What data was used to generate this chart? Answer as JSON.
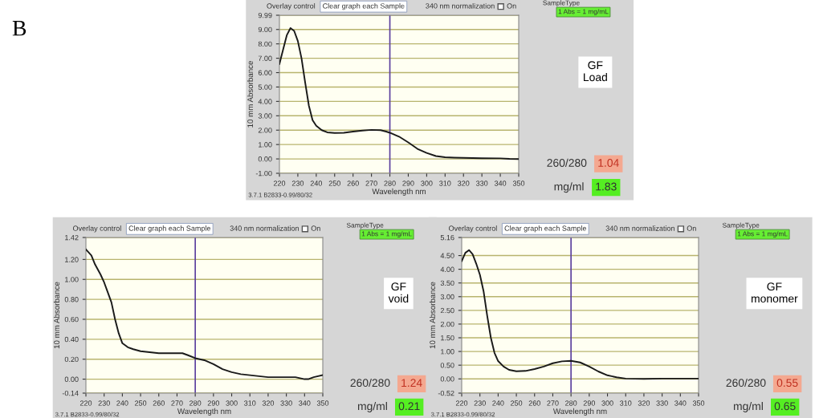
{
  "chart_data": [
    {
      "type": "line",
      "xlabel": "Wavelength nm",
      "ylabel": "10 mm Absorbance",
      "xlim": [
        220,
        350
      ],
      "ylim": [
        -1.0,
        9.99
      ],
      "xticks": [
        220,
        230,
        240,
        250,
        260,
        270,
        280,
        290,
        300,
        310,
        320,
        330,
        340,
        350
      ],
      "yticks": [
        {
          "value": -1,
          "label": "-1.00"
        },
        {
          "value": 0,
          "label": "0.00"
        },
        {
          "value": 1,
          "label": "1.00"
        },
        {
          "value": 2,
          "label": "2.00"
        },
        {
          "value": 3,
          "label": "3.00"
        },
        {
          "value": 4,
          "label": "4.00"
        },
        {
          "value": 5,
          "label": "5.00"
        },
        {
          "value": 6,
          "label": "6.00"
        },
        {
          "value": 7,
          "label": "7.00"
        },
        {
          "value": 8,
          "label": "8.00"
        },
        {
          "value": 9,
          "label": "9.00"
        },
        {
          "value": 9.99,
          "label": "9.99"
        }
      ],
      "grid": "y",
      "ref_lines": [
        {
          "axis": "x",
          "value": 280,
          "color": "#5b3f9e"
        }
      ],
      "series": [
        {
          "color": "#1a1a1a",
          "x": [
            220,
            222,
            224,
            226,
            228,
            230,
            232,
            234,
            236,
            238,
            240,
            243,
            246,
            250,
            255,
            260,
            265,
            270,
            275,
            278,
            280,
            285,
            290,
            295,
            300,
            305,
            310,
            315,
            320,
            330,
            340,
            345,
            350
          ],
          "values": [
            6.6,
            7.6,
            8.6,
            9.1,
            8.9,
            8.2,
            7.0,
            5.3,
            3.7,
            2.7,
            2.3,
            2.0,
            1.85,
            1.8,
            1.82,
            1.9,
            1.97,
            2.02,
            2.0,
            1.9,
            1.82,
            1.55,
            1.15,
            0.7,
            0.42,
            0.2,
            0.12,
            0.09,
            0.07,
            0.05,
            0.04,
            0.0,
            -0.01
          ]
        }
      ],
      "annotations": [
        "Overlay control",
        "Clear graph each Sample",
        "340 nm normalization",
        "On",
        "SampleType",
        "1 Abs = 1 mg/mL",
        "GF\nLoad",
        "260/280",
        "1.04",
        "mg/ml",
        "1.83",
        "3.7.1 B2833-0.99/80/32",
        "B"
      ]
    },
    {
      "type": "line",
      "xlabel": "Wavelength nm",
      "ylabel": "10 mm Absorbance",
      "xlim": [
        220,
        350
      ],
      "ylim": [
        -0.14,
        1.42
      ],
      "xticks": [
        220,
        230,
        240,
        250,
        260,
        270,
        280,
        290,
        300,
        310,
        320,
        330,
        340,
        350
      ],
      "yticks": [
        {
          "value": -0.14,
          "label": "-0.14"
        },
        {
          "value": 0,
          "label": "0.00"
        },
        {
          "value": 0.2,
          "label": "0.20"
        },
        {
          "value": 0.4,
          "label": "0.40"
        },
        {
          "value": 0.6,
          "label": "0.60"
        },
        {
          "value": 0.8,
          "label": "0.80"
        },
        {
          "value": 1.0,
          "label": "1.00"
        },
        {
          "value": 1.2,
          "label": "1.20"
        },
        {
          "value": 1.42,
          "label": "1.42"
        }
      ],
      "grid": "y",
      "ref_lines": [
        {
          "axis": "x",
          "value": 280,
          "color": "#5b3f9e"
        }
      ],
      "series": [
        {
          "color": "#1a1a1a",
          "x": [
            220,
            223,
            225,
            228,
            230,
            232,
            234,
            236,
            238,
            240,
            243,
            246,
            250,
            255,
            260,
            265,
            270,
            273,
            276,
            280,
            285,
            290,
            295,
            300,
            305,
            310,
            315,
            320,
            330,
            335,
            340,
            342,
            345,
            350
          ],
          "values": [
            1.3,
            1.24,
            1.15,
            1.05,
            0.97,
            0.87,
            0.77,
            0.6,
            0.46,
            0.36,
            0.32,
            0.3,
            0.28,
            0.27,
            0.26,
            0.26,
            0.26,
            0.26,
            0.24,
            0.21,
            0.19,
            0.15,
            0.1,
            0.07,
            0.05,
            0.04,
            0.03,
            0.02,
            0.02,
            0.02,
            0.0,
            0.0,
            0.02,
            0.04
          ]
        }
      ],
      "annotations": [
        "Overlay control",
        "Clear graph each Sample",
        "340 nm normalization",
        "On",
        "SampleType",
        "1 Abs = 1 mg/mL",
        "GF\nvoid",
        "260/280",
        "1.24",
        "mg/ml",
        "0.21",
        "3.7.1 B2833-0.99/80/32"
      ]
    },
    {
      "type": "line",
      "xlabel": "Wavelength nm",
      "ylabel": "10 mm Absorbance",
      "xlim": [
        220,
        350
      ],
      "ylim": [
        -0.52,
        5.16
      ],
      "xticks": [
        220,
        230,
        240,
        250,
        260,
        270,
        280,
        290,
        300,
        310,
        320,
        330,
        340,
        350
      ],
      "yticks": [
        {
          "value": -0.52,
          "label": "-0.52"
        },
        {
          "value": 0,
          "label": "0.00"
        },
        {
          "value": 0.5,
          "label": "0.50"
        },
        {
          "value": 1.0,
          "label": "1.00"
        },
        {
          "value": 1.5,
          "label": "1.50"
        },
        {
          "value": 2.0,
          "label": "2.00"
        },
        {
          "value": 2.5,
          "label": "2.50"
        },
        {
          "value": 3.0,
          "label": "3.00"
        },
        {
          "value": 3.5,
          "label": "3.50"
        },
        {
          "value": 4.0,
          "label": "4.00"
        },
        {
          "value": 4.5,
          "label": "4.50"
        },
        {
          "value": 5.16,
          "label": "5.16"
        }
      ],
      "grid": "y",
      "ref_lines": [
        {
          "axis": "x",
          "value": 280,
          "color": "#5b3f9e"
        }
      ],
      "series": [
        {
          "color": "#1a1a1a",
          "x": [
            220,
            222,
            224,
            226,
            228,
            230,
            232,
            234,
            236,
            238,
            240,
            243,
            246,
            250,
            255,
            260,
            265,
            270,
            275,
            280,
            285,
            290,
            295,
            300,
            305,
            310,
            320,
            330,
            340,
            350
          ],
          "values": [
            4.3,
            4.6,
            4.7,
            4.55,
            4.2,
            3.8,
            3.2,
            2.3,
            1.5,
            0.95,
            0.65,
            0.45,
            0.33,
            0.28,
            0.29,
            0.36,
            0.45,
            0.57,
            0.64,
            0.66,
            0.6,
            0.45,
            0.27,
            0.13,
            0.06,
            0.01,
            0.0,
            0.01,
            0.01,
            0.01
          ]
        }
      ],
      "annotations": [
        "Overlay control",
        "Clear graph each Sample",
        "340 nm normalization",
        "On",
        "SampleType",
        "1 Abs = 1 mg/mL",
        "GF\nmonomer",
        "260/280",
        "0.55",
        "mg/ml",
        "0.65",
        "3.7.1 B2833-0.99/80/32"
      ]
    }
  ]
}
